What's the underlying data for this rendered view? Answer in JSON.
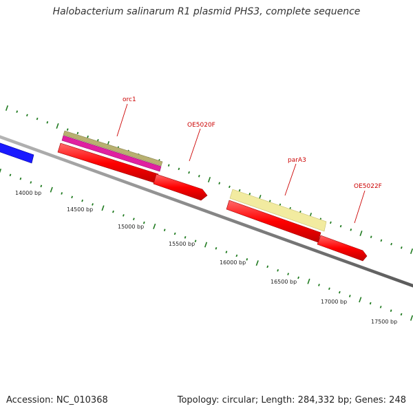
{
  "header": {
    "title": "Halobacterium salinarum R1 plasmid PHS3, complete sequence"
  },
  "footer": {
    "accession": "Accession: NC_010368",
    "summary": "Topology: circular; Length: 284,332 bp; Genes: 248"
  },
  "bp_labels": [
    "14000 bp",
    "14500 bp",
    "15000 bp",
    "15500 bp",
    "16000 bp",
    "16500 bp",
    "17000 bp",
    "17500 bp"
  ],
  "gene_labels": [
    {
      "text": "orc1"
    },
    {
      "text": "OE5020F"
    },
    {
      "text": "parA3"
    },
    {
      "text": "OE5022F"
    }
  ],
  "colors": {
    "backbone": "#8a8a8a",
    "ticks": "#1f7a1f",
    "gene_red": "#ff0000",
    "gene_blue": "#1a1aff",
    "olive": "#b8b070",
    "magenta": "#e020a0",
    "pale_yellow": "#f2eba0",
    "label_red": "#cc0000"
  }
}
